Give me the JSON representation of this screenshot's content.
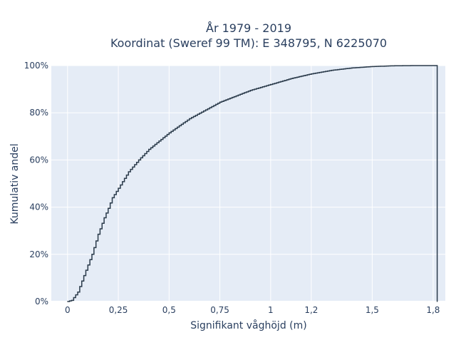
{
  "chart_data": {
    "type": "line",
    "title_line1": "År 1979 - 2019",
    "title_line2": "Koordinat (Sweref 99 TM): E 348795, N 6225070",
    "xlabel": "Signifikant våghöjd (m)",
    "ylabel": "Kumulativ andel",
    "xlim": [
      -0.08,
      1.86
    ],
    "ylim": [
      0,
      1.0
    ],
    "x_ticks": [
      {
        "value": 0,
        "label": "0"
      },
      {
        "value": 0.25,
        "label": "0,25"
      },
      {
        "value": 0.5,
        "label": "0,5"
      },
      {
        "value": 0.75,
        "label": "0,75"
      },
      {
        "value": 1,
        "label": "1"
      },
      {
        "value": 1.2,
        "label": "1,2"
      },
      {
        "value": 1.5,
        "label": "1,5"
      },
      {
        "value": 1.8,
        "label": "1,8"
      }
    ],
    "y_ticks": [
      {
        "value": 0,
        "label": "0%"
      },
      {
        "value": 0.2,
        "label": "20%"
      },
      {
        "value": 0.4,
        "label": "40%"
      },
      {
        "value": 0.6,
        "label": "60%"
      },
      {
        "value": 0.8,
        "label": "80%"
      },
      {
        "value": 1.0,
        "label": "100%"
      }
    ],
    "grid": true,
    "line_color": "#2a3a4a",
    "background_color": "#e5ecf6",
    "series": [
      {
        "x": [
          0.0,
          0.02,
          0.05,
          0.08,
          0.1,
          0.12,
          0.15,
          0.18,
          0.2,
          0.22,
          0.25,
          0.3,
          0.35,
          0.4,
          0.5,
          0.6,
          0.75,
          0.9,
          1.0,
          1.1,
          1.2,
          1.3,
          1.4,
          1.5,
          1.6,
          1.7,
          1.82,
          1.82
        ],
        "y": [
          0.0,
          0.005,
          0.04,
          0.11,
          0.155,
          0.2,
          0.285,
          0.355,
          0.395,
          0.44,
          0.48,
          0.55,
          0.6,
          0.645,
          0.715,
          0.775,
          0.845,
          0.895,
          0.92,
          0.945,
          0.965,
          0.98,
          0.99,
          0.996,
          0.999,
          1.0,
          1.0,
          0.0
        ]
      }
    ]
  }
}
